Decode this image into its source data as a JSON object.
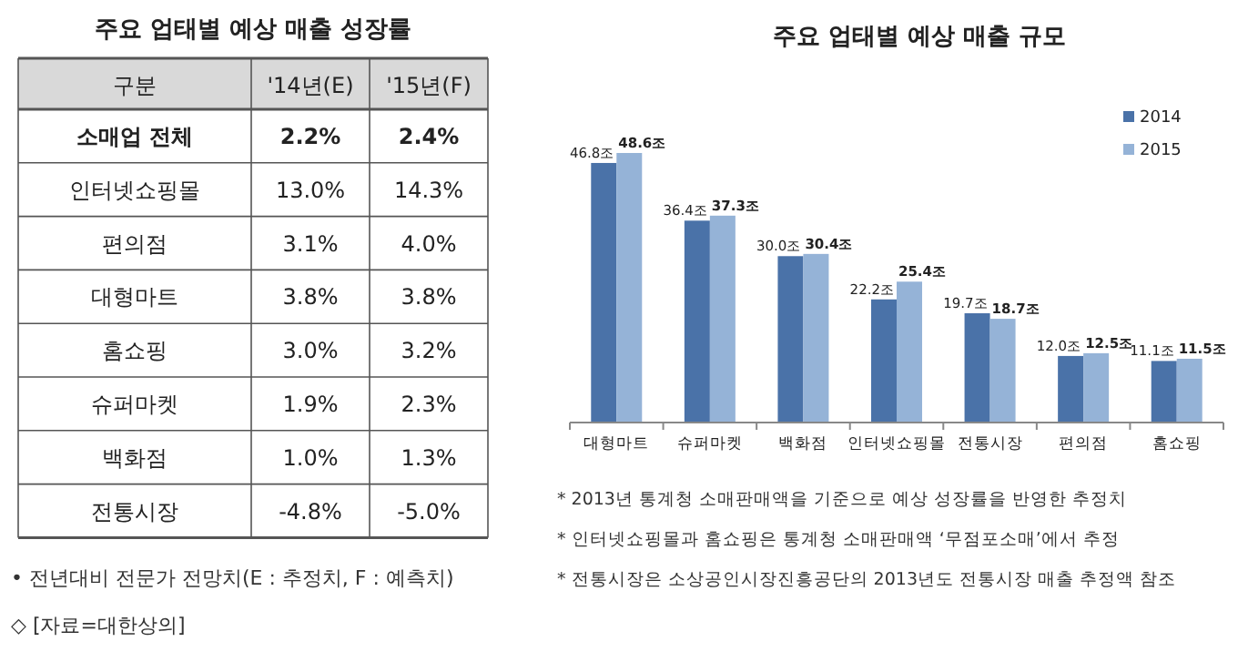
{
  "chart_data": [
    {
      "type": "other",
      "title": "주요 업태별 예상 매출 성장률",
      "ylabel": "구분",
      "categories": [
        "소매업 전체",
        "인터넷쇼핑몰",
        "편의점",
        "대형마트",
        "홈쇼핑",
        "슈퍼마켓",
        "백화점",
        "전통시장"
      ],
      "series": [
        {
          "name": "'14년(E)",
          "values": [
            2.2,
            13.0,
            3.1,
            3.8,
            3.0,
            1.9,
            1.0,
            -4.8
          ],
          "value_labels": [
            "2.2%",
            "13.0%",
            "3.1%",
            "3.8%",
            "3.0%",
            "1.9%",
            "1.0%",
            "-4.8%"
          ]
        },
        {
          "name": "'15년(F)",
          "values": [
            2.4,
            14.3,
            4.0,
            3.8,
            3.2,
            2.3,
            1.3,
            -5.0
          ],
          "value_labels": [
            "2.4%",
            "14.3%",
            "4.0%",
            "3.8%",
            "3.2%",
            "2.3%",
            "1.3%",
            "-5.0%"
          ]
        }
      ],
      "annotations": [
        "• 전년대비 전문가 전망치(E : 추정치, F : 예측치)",
        "◇ [자료=대한상의]"
      ]
    },
    {
      "type": "bar",
      "title": "주요 업태별 예상 매출 규모",
      "categories": [
        "대형마트",
        "슈퍼마켓",
        "백화점",
        "인터넷쇼핑몰",
        "전통시장",
        "편의점",
        "홈쇼핑"
      ],
      "series": [
        {
          "name": "2014",
          "color": "#4a72a8",
          "values": [
            46.8,
            36.4,
            30.0,
            22.2,
            19.7,
            12.0,
            11.1
          ],
          "value_labels": [
            "46.8조",
            "36.4조",
            "30.0조",
            "22.2조",
            "19.7조",
            "12.0조",
            "11.1조"
          ]
        },
        {
          "name": "2015",
          "color": "#95b3d7",
          "values": [
            48.6,
            37.3,
            30.4,
            25.4,
            18.7,
            12.5,
            11.5
          ],
          "value_labels": [
            "48.6조",
            "37.3조",
            "30.4조",
            "25.4조",
            "18.7조",
            "12.5조",
            "11.5조"
          ]
        }
      ],
      "legend": "top right",
      "annotations": [
        "* 2013년 통계청 소매판매액을 기준으로 예상 성장률을 반영한 추정치",
        "* 인터넷쇼핑몰과 홈쇼핑은 통계청 소매판매액 ‘무점포소매’에서 추정",
        "* 전통시장은 소상공인시장진흥공단의 2013년도 전통시장 매출 추정액 참조"
      ]
    }
  ]
}
